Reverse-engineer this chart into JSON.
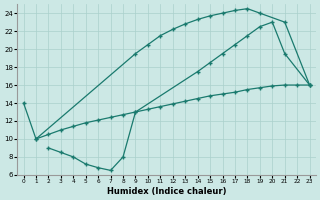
{
  "xlabel": "Humidex (Indice chaleur)",
  "bg_color": "#cce8e5",
  "grid_color": "#aad0cc",
  "line_color": "#1a7a6e",
  "line1_x": [
    0,
    1,
    9,
    10,
    11,
    12,
    13,
    14,
    15,
    16,
    17,
    18,
    19,
    21,
    23
  ],
  "line1_y": [
    14,
    10,
    19.5,
    20.5,
    21.5,
    22.2,
    22.8,
    23.3,
    23.7,
    24.0,
    24.3,
    24.5,
    24.0,
    23.0,
    16
  ],
  "line2_x": [
    2,
    3,
    4,
    5,
    6,
    7,
    8,
    9,
    14,
    15,
    16,
    17,
    18,
    19,
    20,
    21,
    23
  ],
  "line2_y": [
    9,
    8.5,
    8.0,
    7.2,
    6.8,
    6.5,
    8.0,
    13.0,
    17.5,
    18.5,
    19.5,
    20.5,
    21.5,
    22.5,
    23.0,
    19.5,
    16
  ],
  "line3_x": [
    1,
    2,
    3,
    4,
    5,
    6,
    7,
    8,
    9,
    10,
    11,
    12,
    13,
    14,
    15,
    16,
    17,
    18,
    19,
    20,
    21,
    22,
    23
  ],
  "line3_y": [
    10,
    10.5,
    11.0,
    11.4,
    11.8,
    12.1,
    12.4,
    12.7,
    13.0,
    13.3,
    13.6,
    13.9,
    14.2,
    14.5,
    14.8,
    15.0,
    15.2,
    15.5,
    15.7,
    15.9,
    16.0,
    16.0,
    16.0
  ],
  "xlim": [
    -0.5,
    23.5
  ],
  "ylim": [
    6,
    25
  ],
  "yticks": [
    6,
    8,
    10,
    12,
    14,
    16,
    18,
    20,
    22,
    24
  ],
  "xticks": [
    0,
    1,
    2,
    3,
    4,
    5,
    6,
    7,
    8,
    9,
    10,
    11,
    12,
    13,
    14,
    15,
    16,
    17,
    18,
    19,
    20,
    21,
    22,
    23
  ]
}
